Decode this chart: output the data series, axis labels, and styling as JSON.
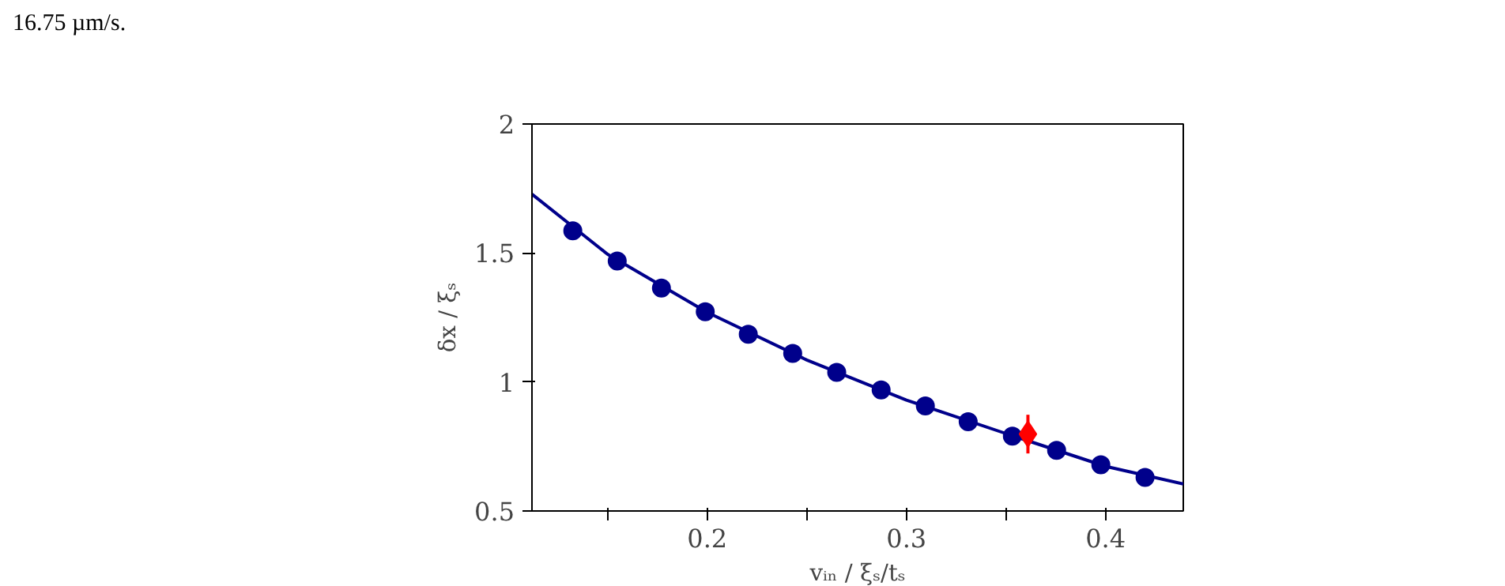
{
  "chart_data": {
    "type": "scatter",
    "xlabel": "vᵢₙ / ξₛ/tₛ",
    "ylabel": "δx / ξₛ",
    "annotations": [
      "16.75 µm/s."
    ],
    "xlim": [
      0.112,
      0.439
    ],
    "ylim": [
      0.5,
      2
    ],
    "xticks": [
      {
        "value": 0.15,
        "label": null
      },
      0.2,
      {
        "value": 0.25,
        "label": null
      },
      0.3,
      {
        "value": 0.35,
        "label": null
      },
      0.4
    ],
    "yticks": [
      0.5,
      1,
      1.5,
      2
    ],
    "grid": false,
    "series": [
      {
        "type": "line",
        "color": "#00008b",
        "marker": "none",
        "line_style": "solid",
        "x": [
          0.112,
          0.15,
          0.2,
          0.25,
          0.3,
          0.35,
          0.4,
          0.439
        ],
        "values": [
          1.728,
          1.495,
          1.27,
          1.085,
          0.93,
          0.8,
          0.673,
          0.605
        ]
      },
      {
        "color": "#00008b",
        "marker": "circle",
        "x": [
          0.1325,
          0.1548,
          0.177,
          0.199,
          0.2206,
          0.2429,
          0.265,
          0.2873,
          0.3095,
          0.331,
          0.3532,
          0.3754,
          0.3976,
          0.4198
        ],
        "values": [
          1.586,
          1.469,
          1.364,
          1.272,
          1.185,
          1.111,
          1.037,
          0.969,
          0.907,
          0.846,
          0.79,
          0.735,
          0.679,
          0.63
        ]
      },
      {
        "color": "#ff0000",
        "marker": "diamond",
        "x": [
          0.361
        ],
        "values": [
          0.798
        ],
        "errors": [
          0.075
        ]
      }
    ]
  }
}
